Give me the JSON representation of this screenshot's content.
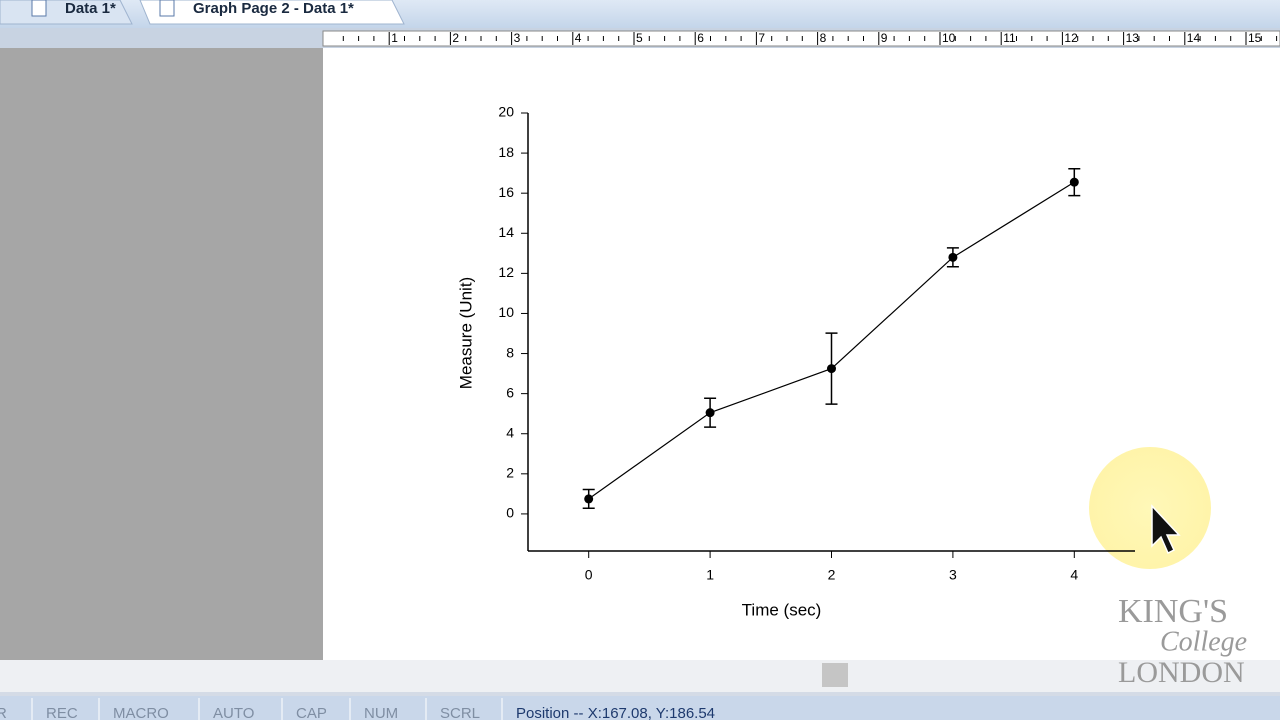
{
  "tabs": [
    "Data 1*",
    "Graph Page 2 - Data 1*"
  ],
  "ruler": [
    "1",
    "2",
    "3",
    "4",
    "5",
    "6",
    "7",
    "8",
    "9",
    "10",
    "11",
    "12",
    "13",
    "14",
    "15"
  ],
  "chart_data": {
    "type": "line",
    "x_label": "Time (sec)",
    "y_label": "Measure (Unit)",
    "x": [
      0,
      1,
      2,
      3,
      4
    ],
    "values": [
      0.75,
      5.05,
      7.25,
      12.8,
      16.55
    ],
    "errors": [
      0.47,
      0.72,
      1.77,
      0.47,
      0.67
    ],
    "color": "#000000",
    "xlim": [
      -0.5,
      4.5
    ],
    "ylim": [
      -1.85,
      20
    ],
    "xticks": [
      0,
      1,
      2,
      3,
      4
    ],
    "yticks": [
      0,
      2,
      4,
      6,
      8,
      10,
      12,
      14,
      16,
      18,
      20
    ]
  },
  "status_bar": [
    "R",
    "REC",
    "MACRO",
    "AUTO",
    "CAP",
    "NUM",
    "SCRL",
    "Position -- X:167.08, Y:186.54"
  ],
  "watermark": [
    "KING'S",
    "College",
    "LONDON"
  ]
}
